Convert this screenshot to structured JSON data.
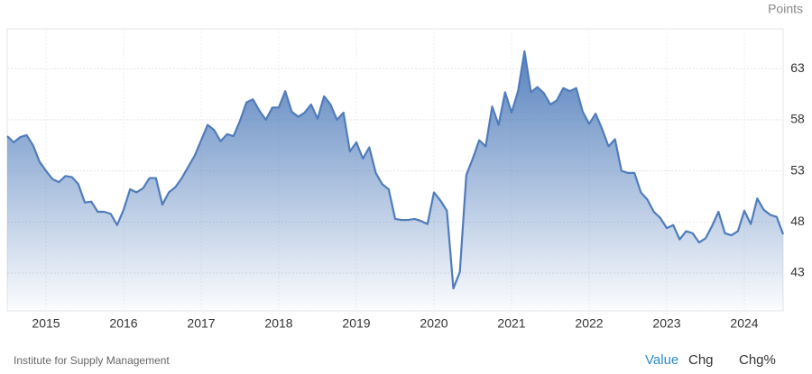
{
  "chart_data": {
    "type": "area",
    "y_label": "Points",
    "categories": [
      null,
      null,
      null,
      null,
      null,
      null,
      "2015",
      null,
      null,
      null,
      null,
      null,
      null,
      null,
      null,
      null,
      null,
      null,
      "2016",
      null,
      null,
      null,
      null,
      null,
      null,
      null,
      null,
      null,
      null,
      null,
      "2017",
      null,
      null,
      null,
      null,
      null,
      null,
      null,
      null,
      null,
      null,
      null,
      "2018",
      null,
      null,
      null,
      null,
      null,
      null,
      null,
      null,
      null,
      null,
      null,
      "2019",
      null,
      null,
      null,
      null,
      null,
      null,
      null,
      null,
      null,
      null,
      null,
      "2020",
      null,
      null,
      null,
      null,
      null,
      null,
      null,
      null,
      null,
      null,
      null,
      "2021",
      null,
      null,
      null,
      null,
      null,
      null,
      null,
      null,
      null,
      null,
      null,
      "2022",
      null,
      null,
      null,
      null,
      null,
      null,
      null,
      null,
      null,
      null,
      null,
      "2023",
      null,
      null,
      null,
      null,
      null,
      null,
      null,
      null,
      null,
      null,
      null,
      "2024",
      null,
      null,
      null,
      null,
      null,
      null
    ],
    "values": [
      56.4,
      55.8,
      56.3,
      56.5,
      55.5,
      53.9,
      53.0,
      52.2,
      51.9,
      52.5,
      52.4,
      51.7,
      49.9,
      50.0,
      49.0,
      49.0,
      48.8,
      47.7,
      49.2,
      51.2,
      50.9,
      51.3,
      52.3,
      52.3,
      49.7,
      50.9,
      51.4,
      52.3,
      53.4,
      54.5,
      56.0,
      57.5,
      57.0,
      55.9,
      56.6,
      56.4,
      57.9,
      59.7,
      60.0,
      58.9,
      58.0,
      59.2,
      59.2,
      60.8,
      58.8,
      58.3,
      58.7,
      59.5,
      58.1,
      60.3,
      59.5,
      58.0,
      58.7,
      54.9,
      55.8,
      54.2,
      55.3,
      52.8,
      51.7,
      51.2,
      48.3,
      48.2,
      48.2,
      48.3,
      48.1,
      47.8,
      50.9,
      50.1,
      49.1,
      41.5,
      43.1,
      52.6,
      54.2,
      56.0,
      55.4,
      59.3,
      57.5,
      60.7,
      58.7,
      60.8,
      64.7,
      60.7,
      61.2,
      60.6,
      59.5,
      59.9,
      61.1,
      60.8,
      61.1,
      58.8,
      57.6,
      58.6,
      57.1,
      55.4,
      56.1,
      53.0,
      52.8,
      52.8,
      50.9,
      50.2,
      49.0,
      48.4,
      47.4,
      47.7,
      46.3,
      47.1,
      46.9,
      46.0,
      46.4,
      47.6,
      49.0,
      46.9,
      46.7,
      47.1,
      49.1,
      47.8,
      50.3,
      49.2,
      48.7,
      48.5,
      46.8
    ],
    "color": "#4f7cbb",
    "ylim": [
      39.3,
      66.9
    ],
    "yticks": [
      43,
      48,
      53,
      58,
      63
    ],
    "grid": true
  },
  "footer": {
    "source": "Institute for Supply Management",
    "tabs": [
      "Value",
      "Chg",
      "Chg%"
    ]
  }
}
